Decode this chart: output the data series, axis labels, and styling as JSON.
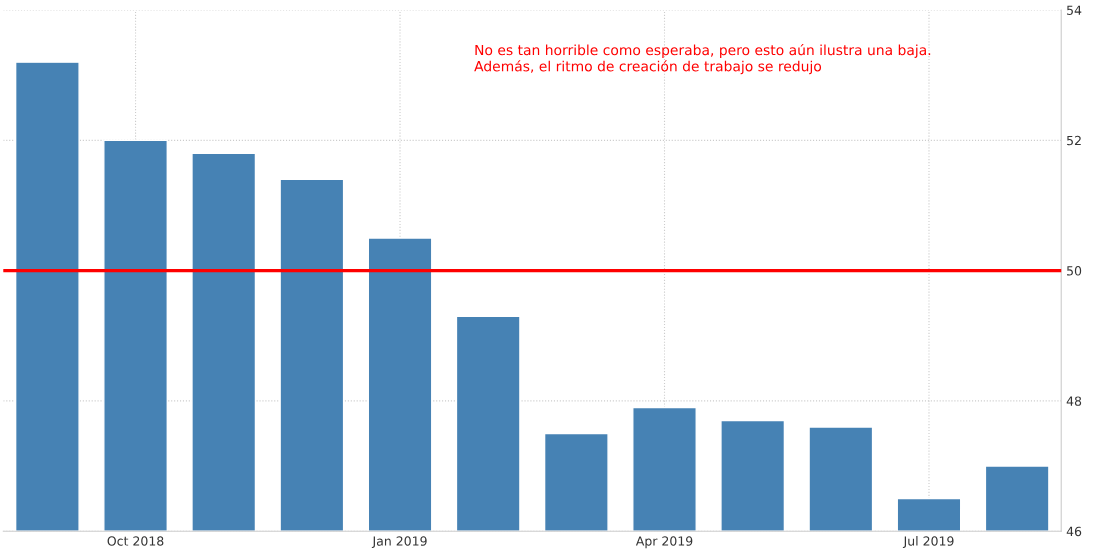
{
  "chart_data": {
    "type": "bar",
    "categories": [
      null,
      "Oct 2018",
      null,
      null,
      "Jan 2019",
      null,
      null,
      "Apr 2019",
      null,
      null,
      "Jul 2019",
      null
    ],
    "values": [
      53.2,
      52.0,
      51.8,
      51.4,
      50.5,
      49.3,
      47.5,
      47.9,
      47.7,
      47.6,
      46.5,
      47.0
    ],
    "color": "#4682b4",
    "ylim": [
      46,
      54
    ],
    "yticks": [
      46,
      48,
      50,
      52,
      54
    ],
    "grid": true,
    "ref_lines": [
      {
        "axis": "y",
        "value": 50,
        "color": "#ff0000"
      }
    ],
    "annotations": [
      "No es tan horrible como esperaba, pero esto aún ilustra una baja.\nAdemás, el ritmo de creación de trabajo se redujo"
    ]
  }
}
